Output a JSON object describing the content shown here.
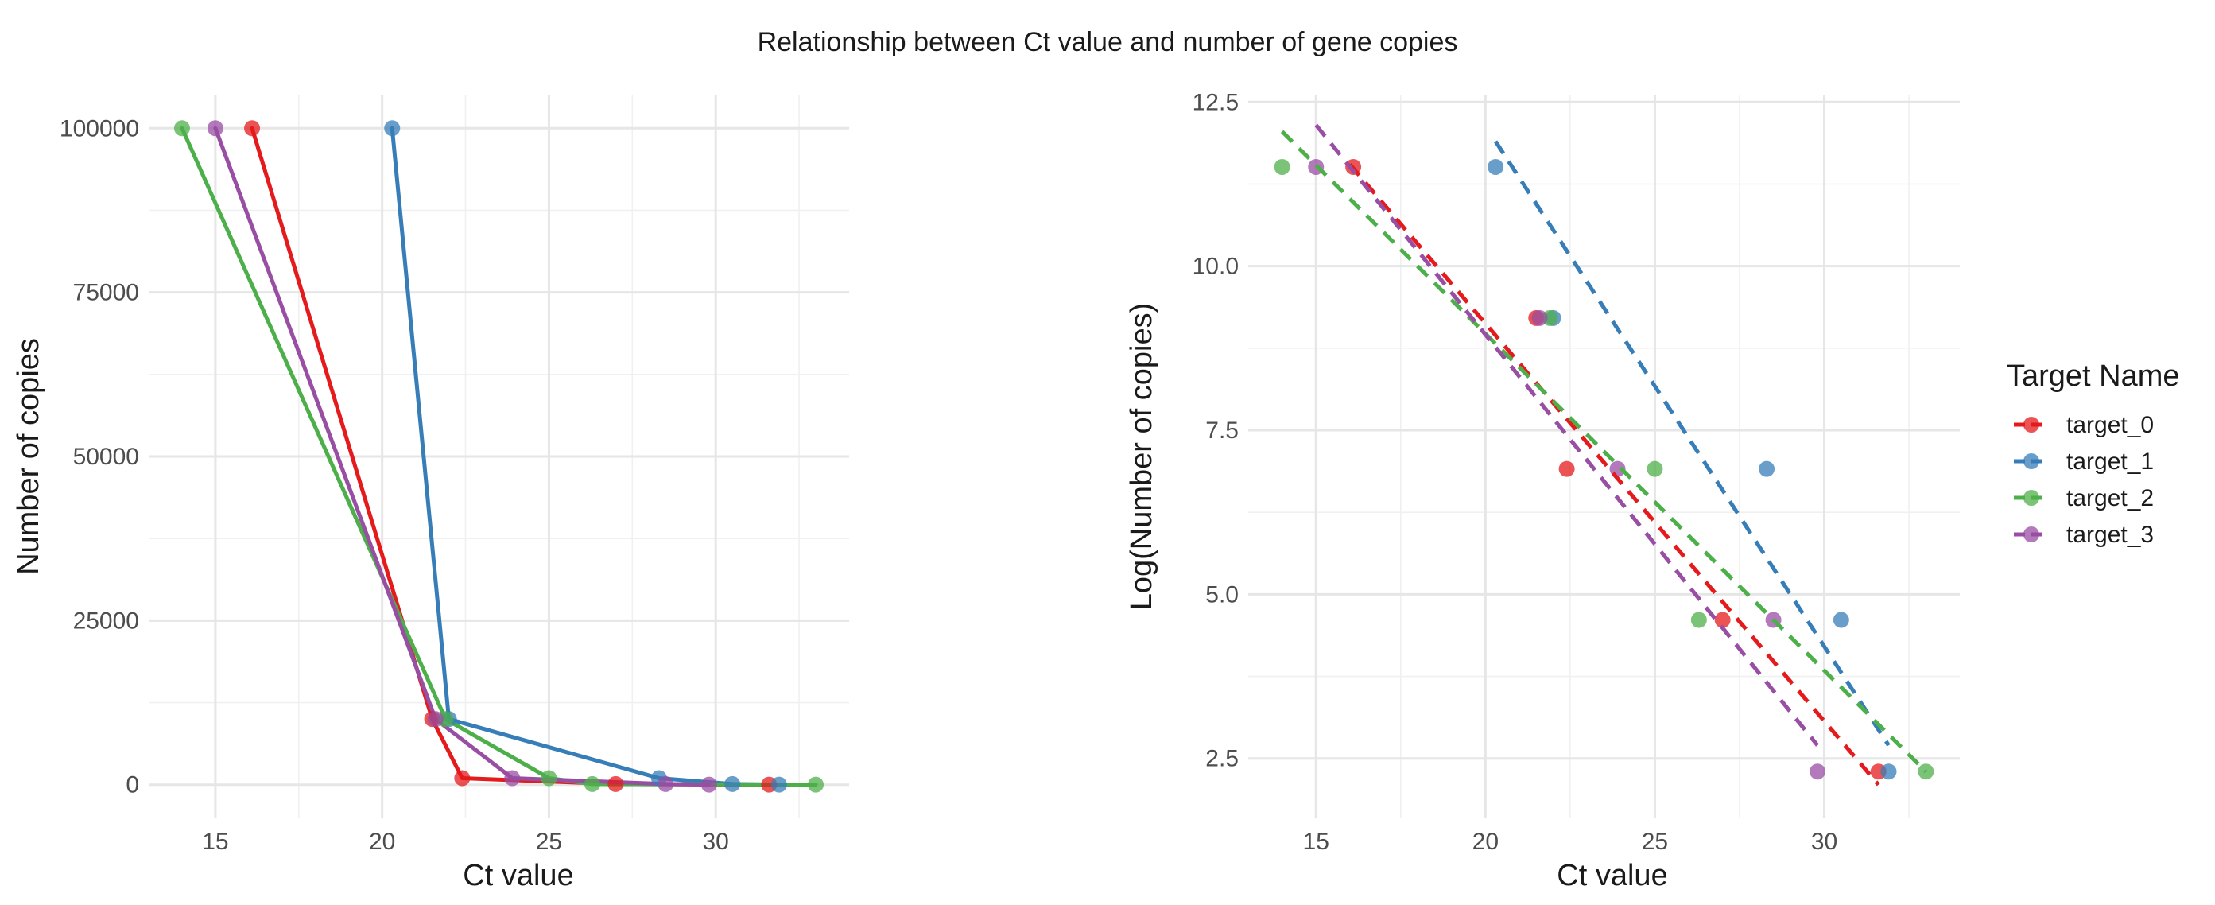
{
  "title": "Relationship between Ct value and number of gene copies",
  "colors": {
    "target_0": "#E41A1C",
    "target_1": "#377EB8",
    "target_2": "#4DAF4A",
    "target_3": "#984EA3"
  },
  "legend": {
    "title": "Target Name",
    "placement": "right",
    "entries": [
      "target_0",
      "target_1",
      "target_2",
      "target_3"
    ]
  },
  "chart_data": [
    {
      "type": "line",
      "xlabel": "Ct value",
      "ylabel": "Number of copies",
      "xlim": [
        13,
        34
      ],
      "ylim": [
        -5000,
        105000
      ],
      "x_ticks": [
        15,
        20,
        25,
        30
      ],
      "y_ticks": [
        0,
        25000,
        50000,
        75000,
        100000
      ],
      "y_tick_labels": [
        "0",
        "25000",
        "50000",
        "75000",
        "100000"
      ],
      "grid": true,
      "series": [
        {
          "name": "target_0",
          "points": [
            [
              16.1,
              100000
            ],
            [
              21.5,
              10000
            ],
            [
              22.4,
              1000
            ],
            [
              27.0,
              100
            ],
            [
              31.6,
              10
            ]
          ]
        },
        {
          "name": "target_1",
          "points": [
            [
              20.3,
              100000
            ],
            [
              22.0,
              10000
            ],
            [
              28.3,
              1000
            ],
            [
              30.5,
              100
            ],
            [
              31.9,
              10
            ]
          ]
        },
        {
          "name": "target_2",
          "points": [
            [
              14.0,
              100000
            ],
            [
              21.9,
              10000
            ],
            [
              25.0,
              1000
            ],
            [
              26.3,
              100
            ],
            [
              33.0,
              10
            ]
          ]
        },
        {
          "name": "target_3",
          "points": [
            [
              15.0,
              100000
            ],
            [
              21.6,
              10000
            ],
            [
              23.9,
              1000
            ],
            [
              28.5,
              100
            ],
            [
              29.8,
              10
            ]
          ]
        }
      ]
    },
    {
      "type": "scatter",
      "xlabel": "Ct value",
      "ylabel": "Log(Number of copies)",
      "xlim": [
        13,
        34
      ],
      "ylim": [
        1.6,
        12.6
      ],
      "x_ticks": [
        15,
        20,
        25,
        30
      ],
      "y_ticks": [
        2.5,
        5.0,
        7.5,
        10.0,
        12.5
      ],
      "y_tick_labels": [
        "2.5",
        "5.0",
        "7.5",
        "10.0",
        "12.5"
      ],
      "grid": true,
      "series": [
        {
          "name": "target_0",
          "points": [
            [
              16.1,
              11.51
            ],
            [
              21.5,
              9.21
            ],
            [
              22.4,
              6.91
            ],
            [
              27.0,
              4.61
            ],
            [
              31.6,
              2.3
            ]
          ],
          "fit": [
            [
              16.0,
              11.55
            ],
            [
              31.6,
              2.1
            ]
          ]
        },
        {
          "name": "target_1",
          "points": [
            [
              20.3,
              11.51
            ],
            [
              22.0,
              9.21
            ],
            [
              28.3,
              6.91
            ],
            [
              30.5,
              4.61
            ],
            [
              31.9,
              2.3
            ]
          ],
          "fit": [
            [
              20.3,
              11.9
            ],
            [
              31.9,
              2.7
            ]
          ]
        },
        {
          "name": "target_2",
          "points": [
            [
              14.0,
              11.51
            ],
            [
              21.9,
              9.21
            ],
            [
              25.0,
              6.91
            ],
            [
              26.3,
              4.61
            ],
            [
              33.0,
              2.3
            ]
          ],
          "fit": [
            [
              14.0,
              12.05
            ],
            [
              33.0,
              2.3
            ]
          ]
        },
        {
          "name": "target_3",
          "points": [
            [
              15.0,
              11.51
            ],
            [
              21.6,
              9.21
            ],
            [
              23.9,
              6.91
            ],
            [
              28.5,
              4.61
            ],
            [
              29.8,
              2.3
            ]
          ],
          "fit": [
            [
              15.0,
              12.15
            ],
            [
              29.8,
              2.7
            ]
          ]
        }
      ]
    }
  ]
}
